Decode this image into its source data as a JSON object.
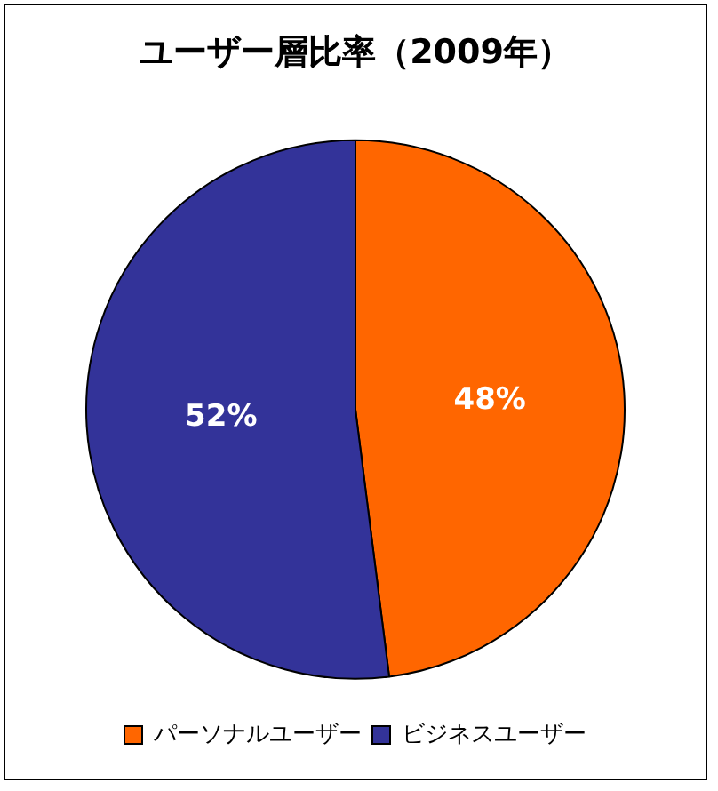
{
  "chart_data": {
    "type": "pie",
    "title": "ユーザー層比率（2009年）",
    "categories": [
      "パーソナルユーザー",
      "ビジネスユーザー"
    ],
    "values": [
      48,
      52
    ],
    "colors": [
      "#ff6600",
      "#333399"
    ],
    "value_labels": [
      "48%",
      "52%"
    ],
    "legend": "bottom"
  }
}
